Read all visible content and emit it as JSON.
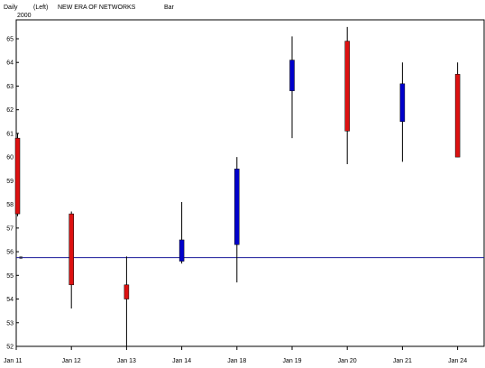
{
  "header": {
    "period": "Daily",
    "side": "(Left)",
    "security": "NEW ERA OF NETWORKS",
    "style": "Bar",
    "year": "2000"
  },
  "colors": {
    "up": "#0000cc",
    "down": "#dd1111",
    "wick": "#000000",
    "reference_line": "#1a1a99",
    "axis": "#000000"
  },
  "chart_data": {
    "type": "candlestick",
    "x": [
      "Jan 11",
      "Jan 12",
      "Jan 13",
      "Jan 14",
      "Jan 18",
      "Jan 19",
      "Jan 20",
      "Jan 21",
      "Jan 24"
    ],
    "open": [
      60.8,
      57.6,
      54.6,
      55.6,
      56.3,
      62.8,
      64.9,
      61.5,
      63.5
    ],
    "high": [
      61.0,
      57.7,
      55.8,
      58.1,
      60.0,
      65.1,
      65.5,
      64.0,
      64.0
    ],
    "low": [
      57.5,
      53.6,
      52.0,
      55.5,
      54.7,
      60.8,
      59.7,
      59.8,
      60.0
    ],
    "close": [
      57.6,
      54.6,
      54.0,
      56.5,
      59.5,
      64.1,
      61.1,
      63.1,
      60.0
    ],
    "ylim": [
      52,
      65.8
    ],
    "yticks": [
      52,
      53,
      54,
      55,
      56,
      57,
      58,
      59,
      60,
      61,
      62,
      63,
      64,
      65
    ],
    "reference_line": 55.75,
    "axis_side": "left",
    "grid": false,
    "title": "NEW ERA OF NETWORKS",
    "xlabel": "",
    "ylabel": ""
  }
}
